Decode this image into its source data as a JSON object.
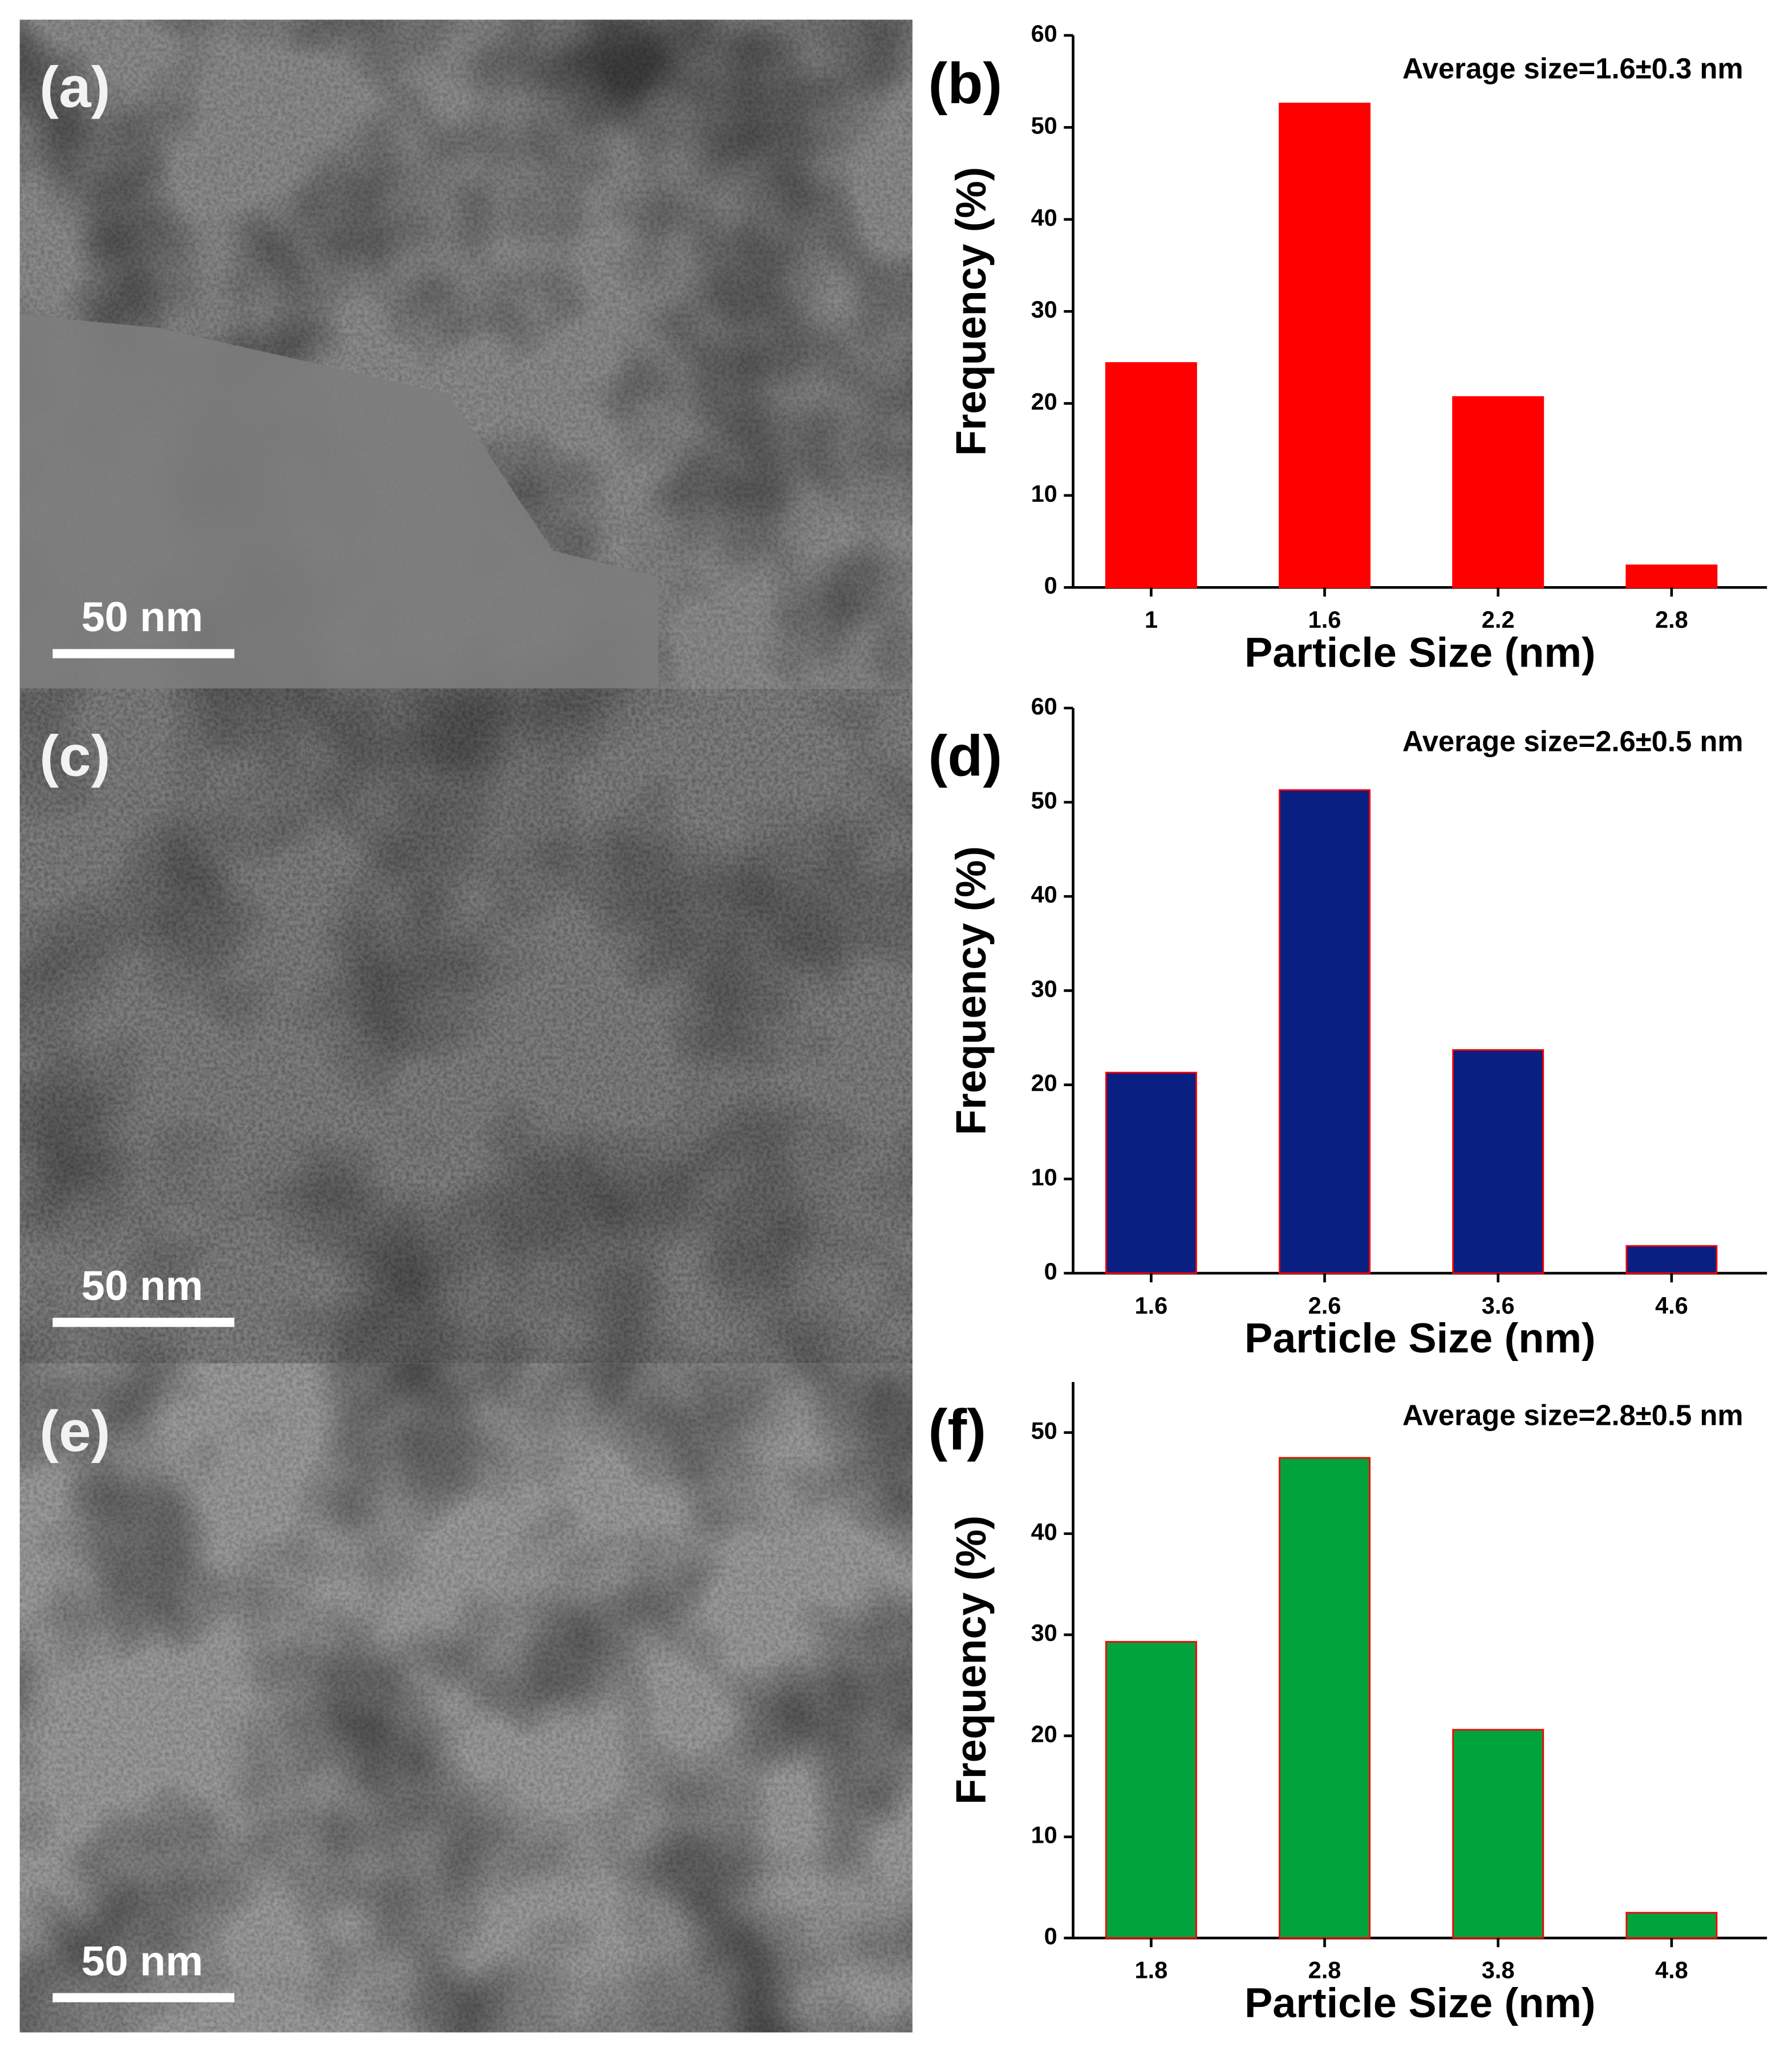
{
  "images": [
    {
      "label": "(a)",
      "scale_bar": "50 nm"
    },
    {
      "label": "(c)",
      "scale_bar": "50 nm"
    },
    {
      "label": "(e)",
      "scale_bar": "50 nm"
    }
  ],
  "chart_data": [
    {
      "type": "bar",
      "label": "(b)",
      "annotation": "Average size=1.6±0.3 nm",
      "categories": [
        "1",
        "1.6",
        "2.2",
        "2.8"
      ],
      "values": [
        24.4,
        52.6,
        20.7,
        2.4
      ],
      "color": "#ff0000",
      "edgecolor": "#ff0000",
      "xlabel": "Particle Size (nm)",
      "ylabel": "Frequency (%)",
      "ylim": [
        0,
        60
      ],
      "yticks": [
        0,
        10,
        20,
        30,
        40,
        50,
        60
      ]
    },
    {
      "type": "bar",
      "label": "(d)",
      "annotation": "Average size=2.6±0.5 nm",
      "categories": [
        "1.6",
        "2.6",
        "3.6",
        "4.6"
      ],
      "values": [
        21.3,
        51.3,
        23.7,
        2.9
      ],
      "color": "#0a1f82",
      "edgecolor": "#ff0000",
      "xlabel": "Particle Size (nm)",
      "ylabel": "Frequency (%)",
      "ylim": [
        0,
        60
      ],
      "yticks": [
        0,
        10,
        20,
        30,
        40,
        50,
        60
      ]
    },
    {
      "type": "bar",
      "label": "(f)",
      "annotation": "Average size=2.8±0.5 nm",
      "categories": [
        "1.8",
        "2.8",
        "3.8",
        "4.8"
      ],
      "values": [
        29.3,
        47.5,
        20.6,
        2.5
      ],
      "color": "#00a33c",
      "edgecolor": "#ff0000",
      "xlabel": "Particle Size (nm)",
      "ylabel": "Frequency (%)",
      "ylim": [
        0,
        55
      ],
      "yticks": [
        0,
        10,
        20,
        30,
        40,
        50
      ]
    }
  ]
}
